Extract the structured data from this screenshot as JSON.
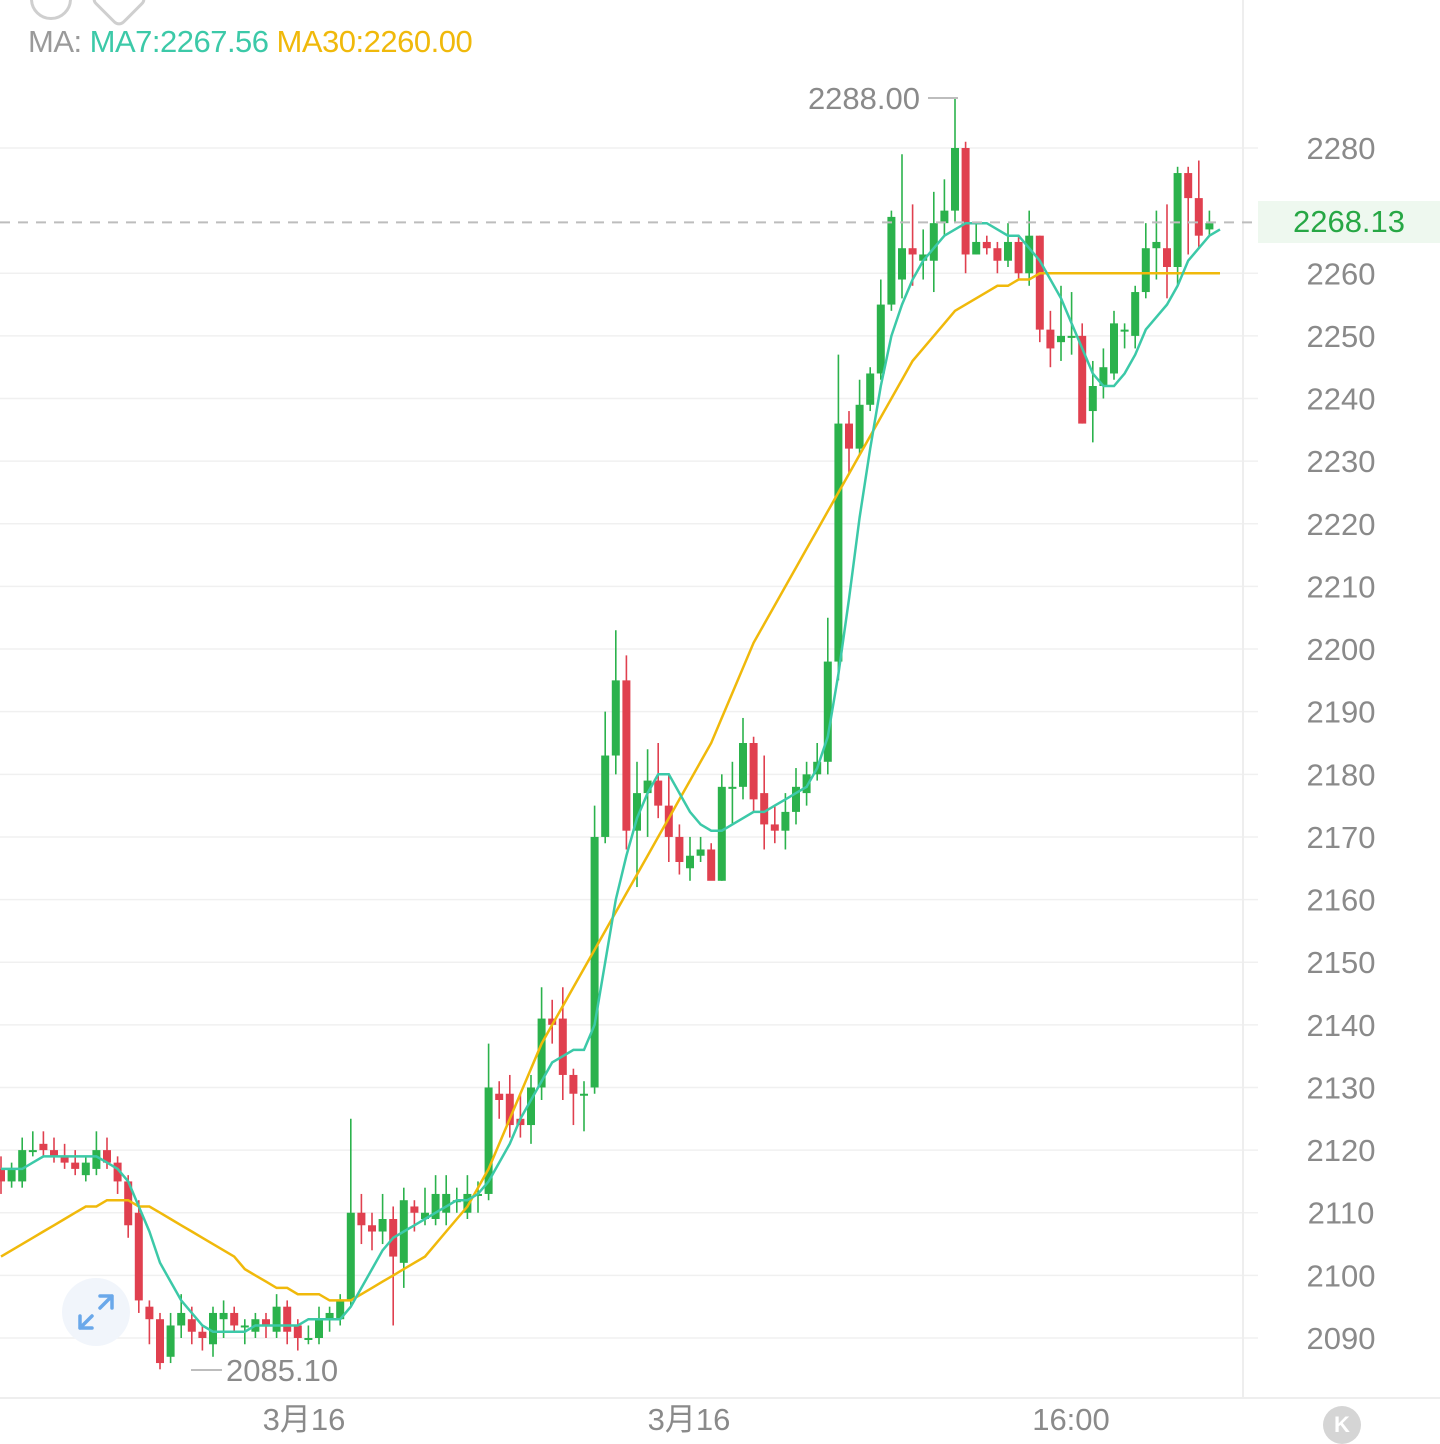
{
  "legend": {
    "prefix": "MA:",
    "ma7": "MA7:2267.56",
    "ma30": "MA30:2260.00"
  },
  "colors": {
    "up": "#2bb24c",
    "down": "#e0404f",
    "ma7": "#3cc9a8",
    "ma30": "#f0b90b",
    "grid": "#f0f0f0",
    "axis_text": "#8a8a8a",
    "last_price_dashed": "#bdbdbd"
  },
  "current_price": "2268.13",
  "extremes": {
    "high_label": "2288.00",
    "low_label": "2085.10"
  },
  "icons": {
    "expand": "expand-arrows-icon",
    "kline": "k-logo-icon"
  },
  "chart_data": {
    "type": "candlestick",
    "y_ticks": [
      2280,
      2260,
      2250,
      2240,
      2230,
      2220,
      2210,
      2200,
      2190,
      2180,
      2170,
      2160,
      2150,
      2140,
      2130,
      2120,
      2110,
      2100,
      2090
    ],
    "y_tick_labels": [
      "2280",
      "2260",
      "2250",
      "2240",
      "2230",
      "2220",
      "2210",
      "2200",
      "2190",
      "2180",
      "2170",
      "2160",
      "2150",
      "2140",
      "2130",
      "2120",
      "2110",
      "2100",
      "2090"
    ],
    "x_tick_labels": [
      "3月16",
      "3月16",
      "16:00"
    ],
    "candles": [
      [
        2117,
        2115,
        2119,
        2113
      ],
      [
        2115,
        2117,
        2118,
        2114
      ],
      [
        2115,
        2120,
        2122,
        2114
      ],
      [
        2120,
        2120,
        2123,
        2119
      ],
      [
        2121,
        2120,
        2123,
        2119
      ],
      [
        2120,
        2119,
        2122,
        2118
      ],
      [
        2119,
        2118,
        2121,
        2117
      ],
      [
        2118,
        2117,
        2120,
        2116
      ],
      [
        2116,
        2118,
        2119,
        2115
      ],
      [
        2117,
        2120,
        2123,
        2116
      ],
      [
        2120,
        2118,
        2122,
        2117
      ],
      [
        2118,
        2115,
        2119,
        2113
      ],
      [
        2115,
        2108,
        2116,
        2106
      ],
      [
        2110,
        2096,
        2112,
        2094
      ],
      [
        2095,
        2093,
        2096,
        2089
      ],
      [
        2093,
        2086,
        2094,
        2085
      ],
      [
        2087,
        2092,
        2094,
        2086
      ],
      [
        2092,
        2094,
        2097,
        2090
      ],
      [
        2093,
        2091,
        2095,
        2089
      ],
      [
        2091,
        2090,
        2092,
        2088
      ],
      [
        2089,
        2094,
        2095,
        2087
      ],
      [
        2093,
        2094,
        2096,
        2090
      ],
      [
        2094,
        2092,
        2095,
        2091
      ],
      [
        2092,
        2092,
        2093,
        2089
      ],
      [
        2091,
        2093,
        2094,
        2090
      ],
      [
        2093,
        2092,
        2094,
        2090
      ],
      [
        2091,
        2095,
        2097,
        2090
      ],
      [
        2095,
        2091,
        2096,
        2089
      ],
      [
        2092,
        2090,
        2093,
        2088
      ],
      [
        2090,
        2090,
        2092,
        2089
      ],
      [
        2090,
        2093,
        2095,
        2089
      ],
      [
        2093,
        2094,
        2095,
        2091
      ],
      [
        2093,
        2096,
        2097,
        2092
      ],
      [
        2096,
        2110,
        2125,
        2095
      ],
      [
        2110,
        2108,
        2113,
        2105
      ],
      [
        2108,
        2107,
        2110,
        2104
      ],
      [
        2107,
        2109,
        2113,
        2105
      ],
      [
        2109,
        2103,
        2111,
        2092
      ],
      [
        2102,
        2112,
        2114,
        2098
      ],
      [
        2111,
        2110,
        2112,
        2107
      ],
      [
        2109,
        2110,
        2114,
        2108
      ],
      [
        2109,
        2113,
        2116,
        2108
      ],
      [
        2110,
        2113,
        2116,
        2108
      ],
      [
        2112,
        2112,
        2114,
        2110
      ],
      [
        2110,
        2113,
        2116,
        2109
      ],
      [
        2113,
        2113,
        2115,
        2110
      ],
      [
        2113,
        2130,
        2137,
        2112
      ],
      [
        2129,
        2128,
        2131,
        2125
      ],
      [
        2129,
        2124,
        2132,
        2122
      ],
      [
        2125,
        2124,
        2129,
        2122
      ],
      [
        2124,
        2130,
        2132,
        2121
      ],
      [
        2130,
        2141,
        2146,
        2128
      ],
      [
        2141,
        2140,
        2144,
        2137
      ],
      [
        2141,
        2132,
        2146,
        2128
      ],
      [
        2132,
        2129,
        2133,
        2124
      ],
      [
        2129,
        2129,
        2131,
        2123
      ],
      [
        2130,
        2170,
        2175,
        2129
      ],
      [
        2170,
        2183,
        2190,
        2169
      ],
      [
        2183,
        2195,
        2203,
        2180
      ],
      [
        2195,
        2171,
        2199,
        2168
      ],
      [
        2171,
        2177,
        2182,
        2162
      ],
      [
        2177,
        2179,
        2184,
        2170
      ],
      [
        2179,
        2175,
        2185,
        2173
      ],
      [
        2175,
        2170,
        2180,
        2166
      ],
      [
        2170,
        2166,
        2172,
        2164
      ],
      [
        2165,
        2167,
        2170,
        2163
      ],
      [
        2167,
        2168,
        2170,
        2166
      ],
      [
        2168,
        2163,
        2169,
        2164
      ],
      [
        2163,
        2178,
        2180,
        2163
      ],
      [
        2178,
        2178,
        2182,
        2172
      ],
      [
        2178,
        2185,
        2189,
        2176
      ],
      [
        2185,
        2176,
        2186,
        2174
      ],
      [
        2177,
        2172,
        2183,
        2168
      ],
      [
        2172,
        2171,
        2175,
        2169
      ],
      [
        2171,
        2174,
        2177,
        2168
      ],
      [
        2174,
        2178,
        2181,
        2172
      ],
      [
        2177,
        2180,
        2182,
        2175
      ],
      [
        2180,
        2182,
        2185,
        2179
      ],
      [
        2182,
        2198,
        2205,
        2180
      ],
      [
        2198,
        2236,
        2247,
        2195
      ],
      [
        2236,
        2232,
        2238,
        2228
      ],
      [
        2232,
        2239,
        2243,
        2231
      ],
      [
        2239,
        2244,
        2245,
        2238
      ],
      [
        2244,
        2255,
        2259,
        2243
      ],
      [
        2255,
        2269,
        2270,
        2254
      ],
      [
        2259,
        2264,
        2279,
        2256
      ],
      [
        2264,
        2263,
        2271,
        2258
      ],
      [
        2262,
        2263,
        2267,
        2259
      ],
      [
        2262,
        2268,
        2273,
        2257
      ],
      [
        2268,
        2270,
        2275,
        2266
      ],
      [
        2270,
        2280,
        2288,
        2268
      ],
      [
        2280,
        2263,
        2281,
        2260
      ],
      [
        2263,
        2265,
        2268,
        2263
      ],
      [
        2265,
        2264,
        2266,
        2263
      ],
      [
        2264,
        2262,
        2265,
        2260
      ],
      [
        2262,
        2265,
        2268,
        2261
      ],
      [
        2265,
        2260,
        2266,
        2259
      ],
      [
        2260,
        2266,
        2270,
        2258
      ],
      [
        2266,
        2251,
        2266,
        2249
      ],
      [
        2251,
        2248,
        2254,
        2245
      ],
      [
        2249,
        2250,
        2258,
        2246
      ],
      [
        2250,
        2250,
        2257,
        2247
      ],
      [
        2250,
        2236,
        2252,
        2236
      ],
      [
        2238,
        2242,
        2246,
        2233
      ],
      [
        2242,
        2245,
        2248,
        2240
      ],
      [
        2244,
        2252,
        2254,
        2243
      ],
      [
        2251,
        2251,
        2252,
        2248
      ],
      [
        2250,
        2257,
        2258,
        2248
      ],
      [
        2257,
        2264,
        2268,
        2256
      ],
      [
        2264,
        2265,
        2270,
        2259
      ],
      [
        2264,
        2261,
        2271,
        2256
      ],
      [
        2261,
        2276,
        2277,
        2258
      ],
      [
        2276,
        2272,
        2277,
        2263
      ],
      [
        2272,
        2266,
        2278,
        2264
      ],
      [
        2267,
        2268,
        2270,
        2266
      ]
    ],
    "ma7": [
      2117,
      2117,
      2117,
      2118,
      2119,
      2119,
      2119,
      2119,
      2119,
      2119,
      2118,
      2117,
      2115,
      2111,
      2107,
      2102,
      2099,
      2096,
      2094,
      2092,
      2091,
      2091,
      2091,
      2091,
      2092,
      2092,
      2092,
      2092,
      2092,
      2093,
      2093,
      2093,
      2093,
      2095,
      2098,
      2101,
      2104,
      2106,
      2107,
      2108,
      2109,
      2110,
      2111,
      2112,
      2112,
      2113,
      2115,
      2118,
      2121,
      2125,
      2128,
      2131,
      2134,
      2135,
      2136,
      2136,
      2140,
      2150,
      2160,
      2167,
      2173,
      2177,
      2180,
      2180,
      2177,
      2174,
      2172,
      2171,
      2171,
      2172,
      2173,
      2174,
      2174,
      2175,
      2176,
      2177,
      2178,
      2181,
      2186,
      2196,
      2208,
      2221,
      2232,
      2242,
      2250,
      2255,
      2259,
      2262,
      2264,
      2266,
      2267,
      2268,
      2268,
      2268,
      2267,
      2266,
      2266,
      2264,
      2262,
      2259,
      2256,
      2252,
      2248,
      2244,
      2242,
      2242,
      2244,
      2247,
      2251,
      2253,
      2255,
      2258,
      2262,
      2264,
      2266,
      2267
    ],
    "ma30": [
      2103,
      2104,
      2105,
      2106,
      2107,
      2108,
      2109,
      2110,
      2111,
      2111,
      2112,
      2112,
      2112,
      2111,
      2111,
      2110,
      2109,
      2108,
      2107,
      2106,
      2105,
      2104,
      2103,
      2101,
      2100,
      2099,
      2098,
      2098,
      2097,
      2097,
      2097,
      2096,
      2096,
      2096,
      2097,
      2098,
      2099,
      2100,
      2101,
      2102,
      2103,
      2105,
      2107,
      2109,
      2111,
      2114,
      2117,
      2121,
      2125,
      2129,
      2133,
      2137,
      2140,
      2143,
      2146,
      2149,
      2152,
      2155,
      2158,
      2161,
      2164,
      2167,
      2170,
      2173,
      2176,
      2179,
      2182,
      2185,
      2189,
      2193,
      2197,
      2201,
      2204,
      2207,
      2210,
      2213,
      2216,
      2219,
      2222,
      2225,
      2228,
      2231,
      2234,
      2237,
      2240,
      2243,
      2246,
      2248,
      2250,
      2252,
      2254,
      2255,
      2256,
      2257,
      2258,
      2258,
      2259,
      2259,
      2260,
      2260,
      2260,
      2260,
      2260,
      2260,
      2260,
      2260,
      2260,
      2260,
      2260,
      2260,
      2260,
      2260,
      2260,
      2260,
      2260,
      2260
    ]
  }
}
